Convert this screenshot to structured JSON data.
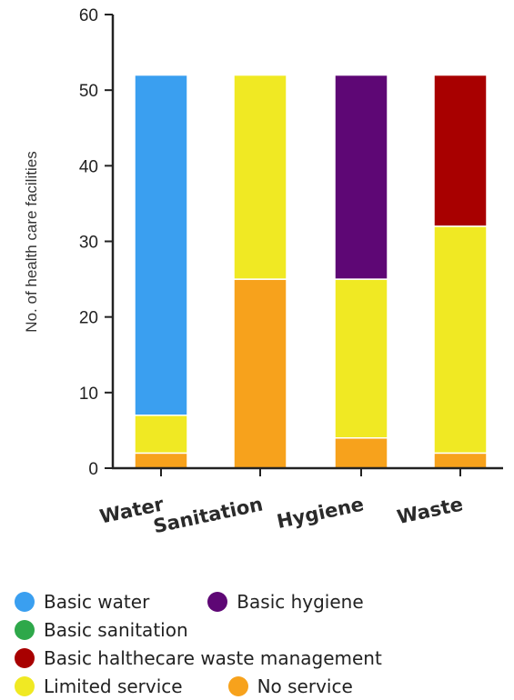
{
  "chart_data": {
    "type": "bar",
    "stacked": true,
    "categories": [
      "Water",
      "Sanitation",
      "Hygiene",
      "Waste"
    ],
    "ylabel": "No. of health care facilities",
    "ylim": [
      0,
      60
    ],
    "yticks": [
      0,
      10,
      20,
      30,
      40,
      50,
      60
    ],
    "grid": false,
    "legend_position": "bottom",
    "series": [
      {
        "name": "No service",
        "color": "#f7a21c",
        "values": [
          2,
          25,
          4,
          2
        ]
      },
      {
        "name": "Limited service",
        "color": "#f0e923",
        "values": [
          5,
          27,
          21,
          30
        ]
      },
      {
        "name": "Basic water",
        "color": "#3a9ff0",
        "values": [
          45,
          0,
          0,
          0
        ]
      },
      {
        "name": "Basic sanitation",
        "color": "#2ea84a",
        "values": [
          0,
          0,
          0,
          0
        ]
      },
      {
        "name": "Basic hygiene",
        "color": "#5e0775",
        "values": [
          0,
          0,
          27,
          0
        ]
      },
      {
        "name": "Basic halthecare waste management",
        "color": "#a80000",
        "values": [
          0,
          0,
          0,
          20
        ]
      }
    ]
  },
  "legend_rows": [
    [
      {
        "label": "Basic water",
        "color": "#3a9ff0"
      },
      {
        "label": "Basic hygiene",
        "color": "#5e0775"
      }
    ],
    [
      {
        "label": "Basic sanitation",
        "color": "#2ea84a"
      }
    ],
    [
      {
        "label": "Basic halthecare waste management",
        "color": "#a80000"
      }
    ],
    [
      {
        "label": "Limited service",
        "color": "#f0e923"
      },
      {
        "label": "No service",
        "color": "#f7a21c"
      }
    ]
  ]
}
